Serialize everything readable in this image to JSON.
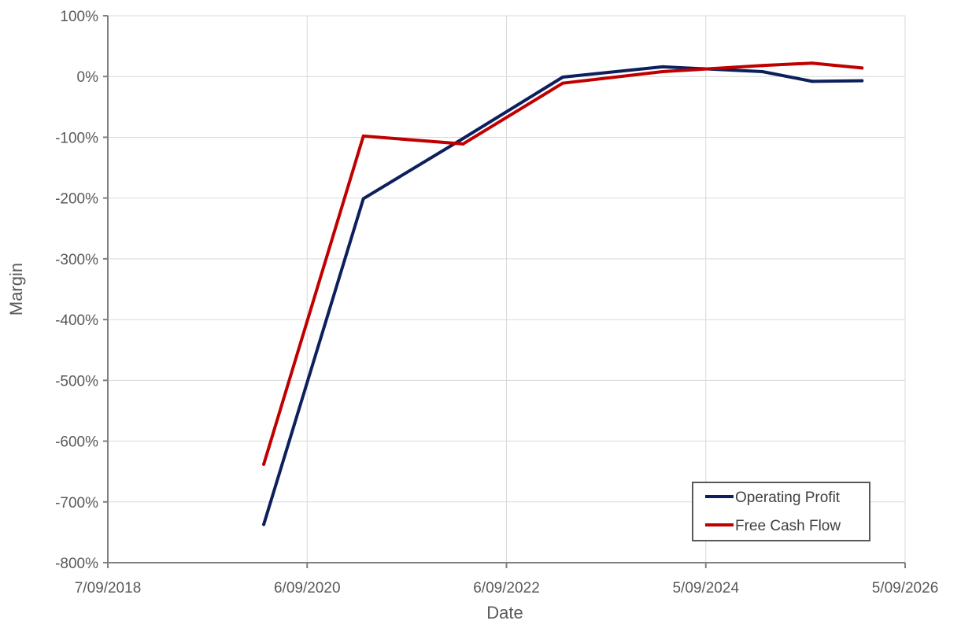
{
  "chart_data": {
    "type": "line",
    "title": "",
    "xlabel": "Date",
    "ylabel": "Margin",
    "x_axis": {
      "type": "date",
      "min": "2018-09-07",
      "max": "2026-09-05",
      "ticks": [
        {
          "date": "2018-09-07",
          "label": "7/09/2018"
        },
        {
          "date": "2020-09-06",
          "label": "6/09/2020"
        },
        {
          "date": "2022-09-06",
          "label": "6/09/2022"
        },
        {
          "date": "2024-09-05",
          "label": "5/09/2024"
        },
        {
          "date": "2026-09-05",
          "label": "5/09/2026"
        }
      ]
    },
    "y_axis": {
      "min": -800,
      "max": 100,
      "step": 100,
      "unit": "%",
      "ticks": [
        {
          "value": 100,
          "label": "100%"
        },
        {
          "value": 0,
          "label": "0%"
        },
        {
          "value": -100,
          "label": "-100%"
        },
        {
          "value": -200,
          "label": "-200%"
        },
        {
          "value": -300,
          "label": "-300%"
        },
        {
          "value": -400,
          "label": "-400%"
        },
        {
          "value": -500,
          "label": "-500%"
        },
        {
          "value": -600,
          "label": "-600%"
        },
        {
          "value": -700,
          "label": "-700%"
        },
        {
          "value": -800,
          "label": "-800%"
        }
      ]
    },
    "grid": true,
    "legend_position": "bottom-right",
    "series": [
      {
        "name": "Operating Profit",
        "color": "#0d1f5c",
        "points": [
          {
            "x": "2020-03-31",
            "y": -737
          },
          {
            "x": "2021-03-31",
            "y": -201
          },
          {
            "x": "2022-03-31",
            "y": -102
          },
          {
            "x": "2023-03-31",
            "y": -1
          },
          {
            "x": "2024-03-31",
            "y": 16
          },
          {
            "x": "2025-03-31",
            "y": 8
          },
          {
            "x": "2025-09-30",
            "y": -8
          },
          {
            "x": "2026-03-31",
            "y": -7
          }
        ]
      },
      {
        "name": "Free Cash Flow",
        "color": "#c00000",
        "points": [
          {
            "x": "2020-03-31",
            "y": -638
          },
          {
            "x": "2021-03-31",
            "y": -98
          },
          {
            "x": "2022-03-31",
            "y": -111
          },
          {
            "x": "2023-03-31",
            "y": -11
          },
          {
            "x": "2024-03-31",
            "y": 8
          },
          {
            "x": "2025-03-31",
            "y": 18
          },
          {
            "x": "2025-09-30",
            "y": 22
          },
          {
            "x": "2026-03-31",
            "y": 14
          }
        ]
      }
    ]
  }
}
